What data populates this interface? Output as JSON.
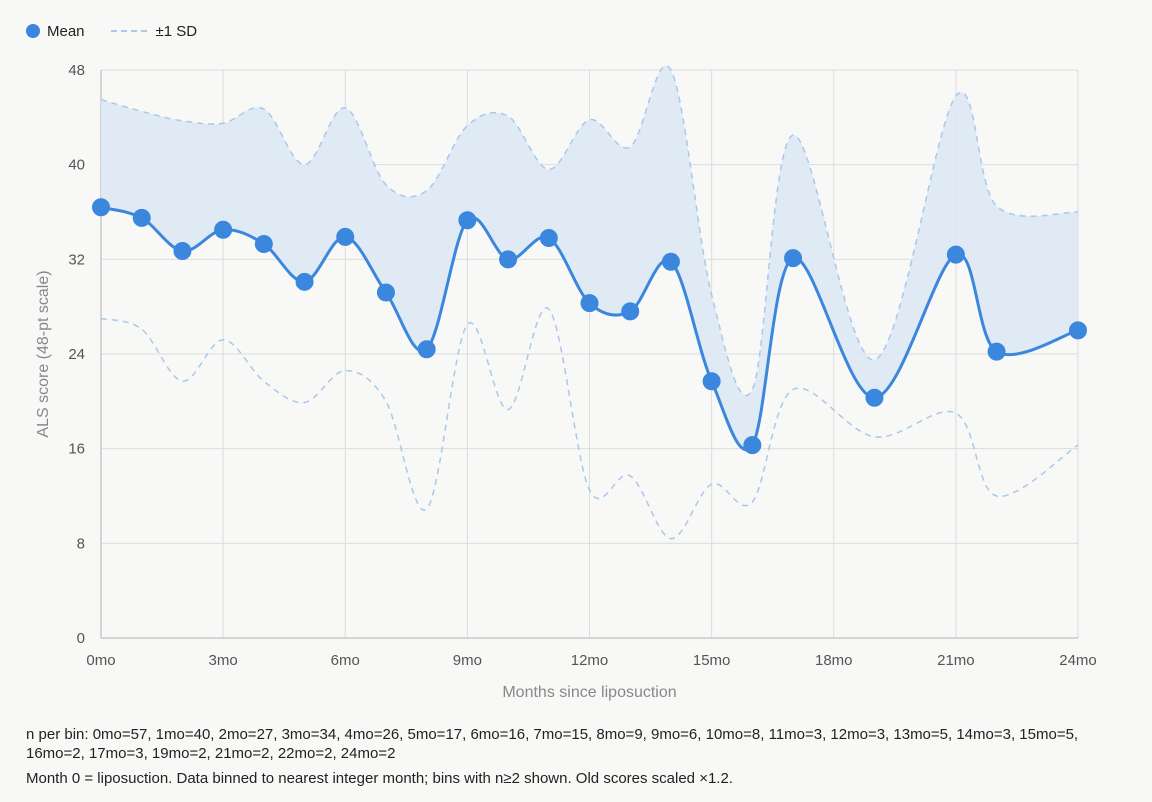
{
  "legend": {
    "mean_label": "Mean",
    "sd_label": "±1 SD"
  },
  "colors": {
    "mean": "#3b87dd",
    "sd_line": "#a9c8ec",
    "band_fill": "#dde8f3",
    "grid": "#dcdcdc",
    "background": "#f8f8f7"
  },
  "chart_data": {
    "type": "line",
    "x": [
      0,
      1,
      2,
      3,
      4,
      5,
      6,
      7,
      8,
      9,
      10,
      11,
      12,
      13,
      14,
      15,
      16,
      17,
      19,
      21,
      22,
      24
    ],
    "series": [
      {
        "name": "Mean",
        "values": [
          36.4,
          35.5,
          32.7,
          34.5,
          33.3,
          30.1,
          33.9,
          29.2,
          24.4,
          35.3,
          32.0,
          33.8,
          28.3,
          27.6,
          31.8,
          21.7,
          16.3,
          32.1,
          20.3,
          32.4,
          24.2,
          26.0
        ]
      },
      {
        "name": "±1 SD",
        "upper": [
          45.5,
          44.5,
          43.7,
          43.5,
          44.7,
          40.0,
          44.8,
          38.3,
          37.8,
          43.3,
          44.1,
          39.6,
          43.8,
          41.5,
          48.0,
          29.0,
          21.0,
          42.5,
          23.5,
          45.8,
          36.5,
          36.0
        ],
        "lower": [
          27.0,
          26.1,
          21.7,
          25.2,
          21.7,
          19.9,
          22.6,
          20.0,
          10.9,
          26.5,
          19.3,
          27.8,
          12.5,
          13.7,
          8.4,
          13.0,
          11.5,
          21.0,
          17.0,
          19.0,
          12.0,
          16.3
        ]
      }
    ],
    "xlabel": "Months since liposuction",
    "ylabel": "ALS score (48-pt scale)",
    "xlim": [
      0,
      24
    ],
    "ylim": [
      0,
      48
    ],
    "xticks": [
      0,
      3,
      6,
      9,
      12,
      15,
      18,
      21,
      24
    ],
    "xtick_labels": [
      "0mo",
      "3mo",
      "6mo",
      "9mo",
      "12mo",
      "15mo",
      "18mo",
      "21mo",
      "24mo"
    ],
    "yticks": [
      0,
      8,
      16,
      24,
      32,
      40,
      48
    ],
    "ytick_labels": [
      "0",
      "8",
      "16",
      "24",
      "32",
      "40",
      "48"
    ],
    "grid": true,
    "legend_position": "top-left"
  },
  "notes": {
    "n_per_bin": "n per bin: 0mo=57, 1mo=40, 2mo=27, 3mo=34, 4mo=26, 5mo=17, 6mo=16, 7mo=15, 8mo=9, 9mo=6, 10mo=8, 11mo=3, 12mo=3, 13mo=5, 14mo=3, 15mo=5, 16mo=2, 17mo=3, 19mo=2, 21mo=2, 22mo=2, 24mo=2",
    "caption": "Month 0 = liposuction. Data binned to nearest integer month; bins with n≥2 shown. Old scores scaled ×1.2."
  }
}
